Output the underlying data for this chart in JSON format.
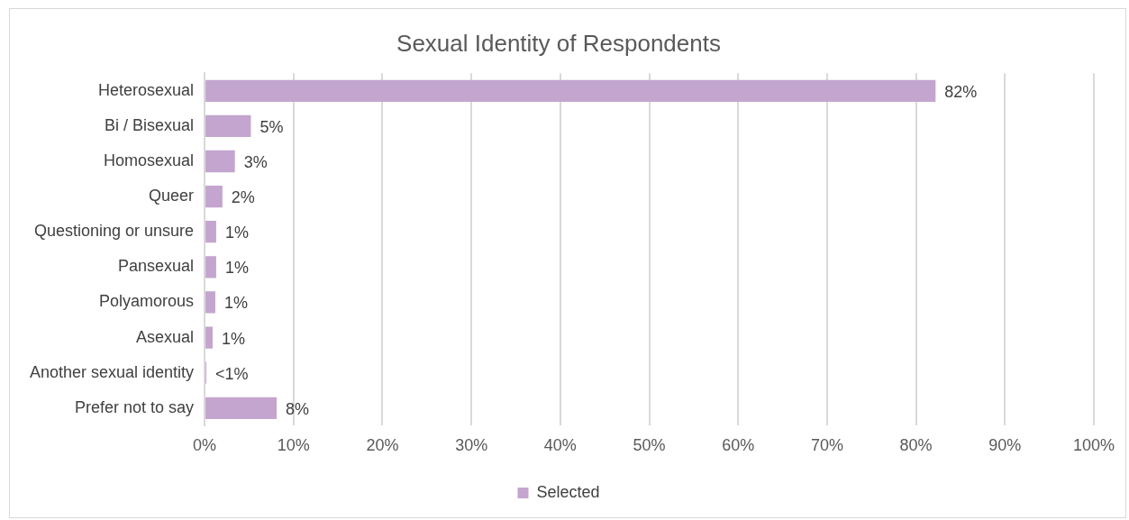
{
  "chart_data": {
    "type": "bar",
    "orientation": "horizontal",
    "title": "Sexual Identity of Respondents",
    "categories": [
      "Heterosexual",
      "Bi / Bisexual",
      "Homosexual",
      "Queer",
      "Questioning or unsure",
      "Pansexual",
      "Polyamorous",
      "Asexual",
      "Another sexual identity",
      "Prefer not to say"
    ],
    "series": [
      {
        "name": "Selected",
        "color": "#c3a5cf",
        "values": [
          82.2,
          5.2,
          3.4,
          2.0,
          1.3,
          1.3,
          1.2,
          0.9,
          0.2,
          8.1
        ],
        "value_labels": [
          "82%",
          "5%",
          "3%",
          "2%",
          "1%",
          "1%",
          "1%",
          "1%",
          "<1%",
          "8%"
        ]
      }
    ],
    "xlim": [
      0,
      100
    ],
    "xticks": [
      {
        "value": 0,
        "label": "0%"
      },
      {
        "value": 10,
        "label": "10%"
      },
      {
        "value": 20,
        "label": "20%"
      },
      {
        "value": 30,
        "label": "30%"
      },
      {
        "value": 40,
        "label": "40%"
      },
      {
        "value": 50,
        "label": "50%"
      },
      {
        "value": 60,
        "label": "60%"
      },
      {
        "value": 70,
        "label": "70%"
      },
      {
        "value": 80,
        "label": "80%"
      },
      {
        "value": 90,
        "label": "90%"
      },
      {
        "value": 100,
        "label": "100%"
      }
    ],
    "grid": "x",
    "legend": "bottom"
  }
}
